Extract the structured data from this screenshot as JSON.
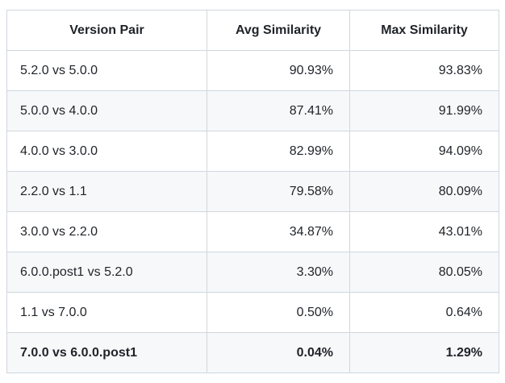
{
  "chart_data": {
    "type": "table",
    "columns": [
      "Version Pair",
      "Avg Similarity",
      "Max Similarity"
    ],
    "rows": [
      [
        "5.2.0 vs 5.0.0",
        "90.93%",
        "93.83%"
      ],
      [
        "5.0.0 vs 4.0.0",
        "87.41%",
        "91.99%"
      ],
      [
        "4.0.0 vs 3.0.0",
        "82.99%",
        "94.09%"
      ],
      [
        "2.2.0 vs 1.1",
        "79.58%",
        "80.09%"
      ],
      [
        "3.0.0 vs 2.2.0",
        "34.87%",
        "43.01%"
      ],
      [
        "6.0.0.post1 vs 5.2.0",
        "3.30%",
        "80.05%"
      ],
      [
        "1.1 vs 7.0.0",
        "0.50%",
        "0.64%"
      ],
      [
        "7.0.0 vs 6.0.0.post1",
        "0.04%",
        "1.29%"
      ]
    ],
    "avg_similarity_pct": [
      90.93,
      87.41,
      82.99,
      79.58,
      34.87,
      3.3,
      0.5,
      0.04
    ],
    "max_similarity_pct": [
      93.83,
      91.99,
      94.09,
      80.09,
      43.01,
      80.05,
      0.64,
      1.29
    ]
  },
  "table": {
    "columns": [
      {
        "label": "Version Pair"
      },
      {
        "label": "Avg Similarity"
      },
      {
        "label": "Max Similarity"
      }
    ],
    "rows": [
      {
        "pair": "5.2.0 vs 5.0.0",
        "avg": "90.93%",
        "max": "93.83%",
        "bold": false
      },
      {
        "pair": "5.0.0 vs 4.0.0",
        "avg": "87.41%",
        "max": "91.99%",
        "bold": false
      },
      {
        "pair": "4.0.0 vs 3.0.0",
        "avg": "82.99%",
        "max": "94.09%",
        "bold": false
      },
      {
        "pair": "2.2.0 vs 1.1",
        "avg": "79.58%",
        "max": "80.09%",
        "bold": false
      },
      {
        "pair": "3.0.0 vs 2.2.0",
        "avg": "34.87%",
        "max": "43.01%",
        "bold": false
      },
      {
        "pair": "6.0.0.post1 vs 5.2.0",
        "avg": "3.30%",
        "max": "80.05%",
        "bold": false
      },
      {
        "pair": "1.1 vs 7.0.0",
        "avg": "0.50%",
        "max": "0.64%",
        "bold": false
      },
      {
        "pair": "7.0.0 vs 6.0.0.post1",
        "avg": "0.04%",
        "max": "1.29%",
        "bold": true
      }
    ]
  },
  "colors": {
    "background": "#ffffff",
    "row_stripe": "#f6f8fa",
    "border": "#d0d7de",
    "text": "#1f2328"
  }
}
